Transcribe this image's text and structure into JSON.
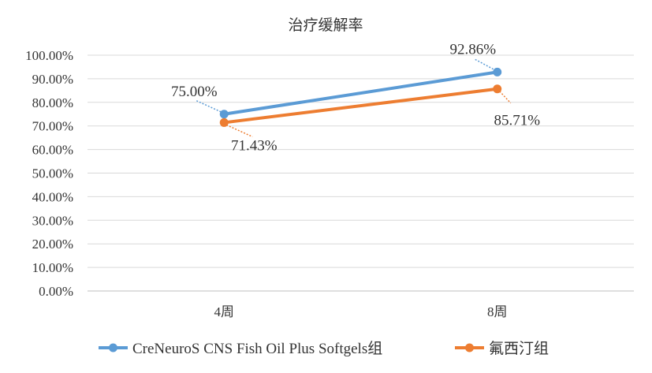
{
  "chart_data": {
    "type": "line",
    "title": "治疗缓解率",
    "categories": [
      "4周",
      "8周"
    ],
    "ylim": [
      0,
      100
    ],
    "yticks": [
      "0.00%",
      "10.00%",
      "20.00%",
      "30.00%",
      "40.00%",
      "50.00%",
      "60.00%",
      "70.00%",
      "80.00%",
      "90.00%",
      "100.00%"
    ],
    "grid": true,
    "legend_position": "bottom",
    "series": [
      {
        "name": "CreNeuroS CNS Fish Oil Plus Softgels组",
        "values": [
          75.0,
          92.86
        ],
        "labels": [
          "75.00%",
          "92.86%"
        ],
        "color": "#5B9BD5"
      },
      {
        "name": "氟西汀组",
        "values": [
          71.43,
          85.71
        ],
        "labels": [
          "71.43%",
          "85.71%"
        ],
        "color": "#ED7D31"
      }
    ]
  }
}
